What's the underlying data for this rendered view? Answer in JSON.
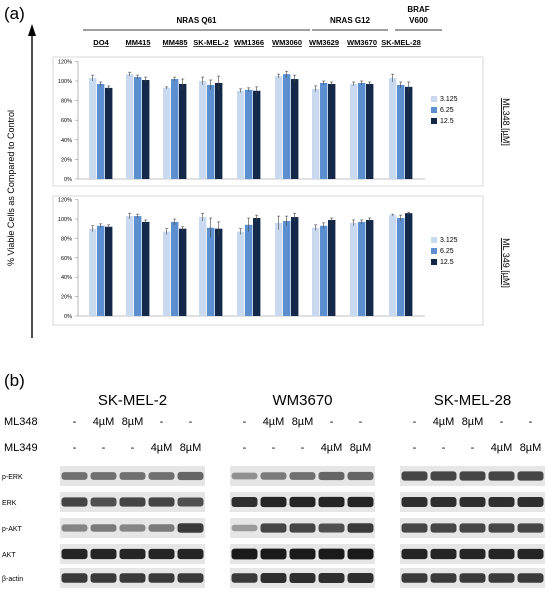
{
  "panel_a": {
    "label": "(a)",
    "y_axis_label": "% Viable Cells as Compared to Control",
    "groups": [
      {
        "name": "NRAS Q61",
        "cells": [
          "DO4",
          "MM415",
          "MM485",
          "SK-MEL-2",
          "WM1366",
          "WM3060"
        ]
      },
      {
        "name": "NRAS G12",
        "cells": [
          "WM3629",
          "WM3670"
        ]
      },
      {
        "name": "BRAF V600",
        "name_lines": [
          "BRAF",
          "V600"
        ],
        "cells": [
          "SK-MEL-28"
        ]
      }
    ],
    "colors": {
      "low": "#c9daf0",
      "mid": "#5b8fcf",
      "high": "#14294a"
    }
  },
  "chart_data": [
    {
      "type": "bar",
      "categories": [
        "DO4",
        "MM415",
        "MM485",
        "SK-MEL-2",
        "WM1366",
        "WM3060",
        "WM3629",
        "WM3670",
        "SK-MEL-28"
      ],
      "series": [
        {
          "name": "3.125",
          "values": [
            103,
            107,
            93,
            100,
            90,
            105,
            92,
            97,
            103
          ],
          "errors": [
            3,
            2,
            1,
            4,
            2,
            2,
            3,
            2,
            4
          ]
        },
        {
          "name": "6.25",
          "values": [
            97,
            104,
            102,
            96,
            91,
            107,
            98,
            98,
            96
          ],
          "errors": [
            2,
            2,
            2,
            5,
            2,
            3,
            2,
            2,
            3
          ]
        },
        {
          "name": "12.5",
          "values": [
            93,
            101,
            97,
            98,
            90,
            102,
            97,
            97,
            94
          ],
          "errors": [
            2,
            3,
            5,
            7,
            4,
            4,
            2,
            2,
            5
          ]
        }
      ],
      "yticks": [
        "0%",
        "20%",
        "40%",
        "60%",
        "80%",
        "100%",
        "120%"
      ],
      "ylim": [
        0,
        120
      ],
      "legend_title": "ML348 [µM]",
      "legend_position": "right"
    },
    {
      "type": "bar",
      "categories": [
        "DO4",
        "MM415",
        "MM485",
        "SK-MEL-2",
        "WM1366",
        "WM3060",
        "WM3629",
        "WM3670",
        "SK-MEL-28"
      ],
      "series": [
        {
          "name": "3.125",
          "values": [
            90,
            103,
            87,
            102,
            87,
            96,
            91,
            96,
            104
          ],
          "errors": [
            3,
            3,
            3,
            4,
            3,
            7,
            3,
            3,
            1
          ]
        },
        {
          "name": "6.25",
          "values": [
            93,
            103,
            97,
            91,
            94,
            98,
            93,
            97,
            101
          ],
          "errors": [
            2,
            2,
            3,
            10,
            7,
            5,
            3,
            2,
            3
          ]
        },
        {
          "name": "12.5",
          "values": [
            92,
            97,
            90,
            90,
            101,
            102,
            99,
            99,
            106
          ],
          "errors": [
            2,
            2,
            2,
            7,
            3,
            4,
            2,
            2,
            1
          ]
        }
      ],
      "yticks": [
        "0%",
        "20%",
        "40%",
        "60%",
        "80%",
        "100%",
        "120%"
      ],
      "ylim": [
        0,
        120
      ],
      "legend_title": "ML 349 [µM]",
      "legend_position": "right"
    }
  ],
  "panel_b": {
    "label": "(b)",
    "row_labels": [
      "ML348",
      "ML349"
    ],
    "sets": [
      {
        "title": "SK-MEL-2",
        "ml348": [
          "-",
          "4µM",
          "8µM",
          "-",
          "-"
        ],
        "ml349": [
          "-",
          "-",
          "-",
          "4µM",
          "8µM"
        ]
      },
      {
        "title": "WM3670",
        "ml348": [
          "-",
          "4µM",
          "8µM",
          "-",
          "-"
        ],
        "ml349": [
          "-",
          "-",
          "-",
          "4µM",
          "8µM"
        ]
      },
      {
        "title": "SK-MEL-28",
        "ml348": [
          "-",
          "4µM",
          "8µM",
          "-",
          "-"
        ],
        "ml349": [
          "-",
          "-",
          "-",
          "4µM",
          "8µM"
        ]
      }
    ],
    "blot_labels": [
      "p-ERK",
      "ERK",
      "p-AKT",
      "AKT",
      "β-actin"
    ],
    "band_intensity": [
      [
        [
          0.55,
          0.55,
          0.55,
          0.55,
          0.6
        ],
        [
          0.75,
          0.7,
          0.75,
          0.75,
          0.7
        ],
        [
          0.45,
          0.5,
          0.45,
          0.5,
          0.8
        ],
        [
          0.9,
          0.9,
          0.9,
          0.9,
          0.9
        ],
        [
          0.8,
          0.8,
          0.8,
          0.8,
          0.8
        ]
      ],
      [
        [
          0.4,
          0.5,
          0.55,
          0.6,
          0.6
        ],
        [
          0.85,
          0.9,
          0.9,
          0.9,
          0.9
        ],
        [
          0.35,
          0.75,
          0.75,
          0.7,
          0.8
        ],
        [
          0.95,
          0.95,
          0.95,
          0.95,
          0.95
        ],
        [
          0.8,
          0.85,
          0.85,
          0.85,
          0.85
        ]
      ],
      [
        [
          0.75,
          0.75,
          0.75,
          0.75,
          0.75
        ],
        [
          0.85,
          0.85,
          0.85,
          0.85,
          0.85
        ],
        [
          0.75,
          0.75,
          0.75,
          0.75,
          0.75
        ],
        [
          0.9,
          0.9,
          0.9,
          0.9,
          0.9
        ],
        [
          0.8,
          0.8,
          0.8,
          0.8,
          0.8
        ]
      ]
    ]
  }
}
